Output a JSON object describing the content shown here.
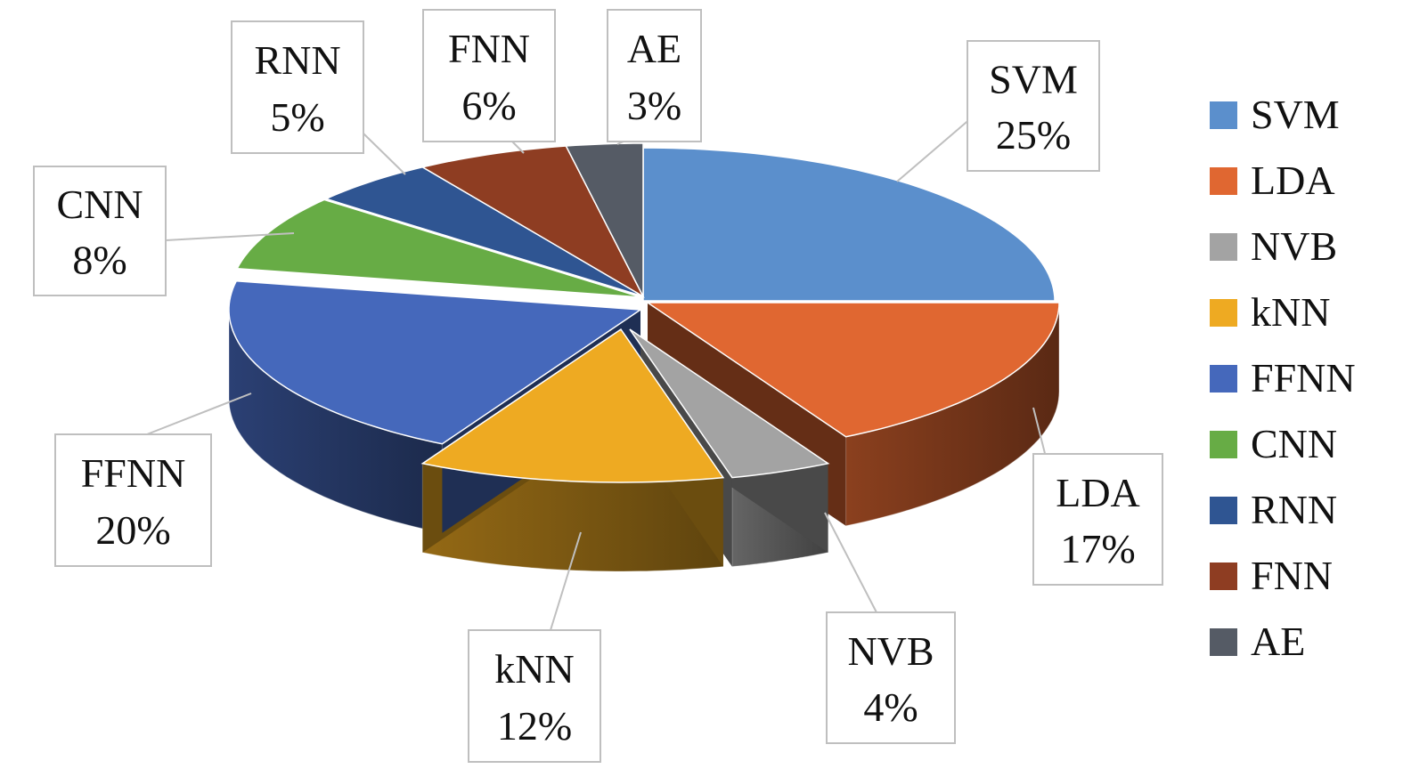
{
  "chart_data": {
    "type": "pie",
    "style": "3d-exploded-pie",
    "title": "",
    "unit": "%",
    "legend_position": "right",
    "slices": [
      {
        "label": "SVM",
        "value": 25,
        "color": "#5b8fcc"
      },
      {
        "label": "LDA",
        "value": 17,
        "color": "#e06731"
      },
      {
        "label": "NVB",
        "value": 4,
        "color": "#a3a3a3"
      },
      {
        "label": "kNN",
        "value": 12,
        "color": "#eeaa22"
      },
      {
        "label": "FFNN",
        "value": 20,
        "color": "#4568bb"
      },
      {
        "label": "CNN",
        "value": 8,
        "color": "#67ac45"
      },
      {
        "label": "RNN",
        "value": 5,
        "color": "#2f5592"
      },
      {
        "label": "FNN",
        "value": 6,
        "color": "#8e3d22"
      },
      {
        "label": "AE",
        "value": 3,
        "color": "#555b65"
      }
    ]
  }
}
